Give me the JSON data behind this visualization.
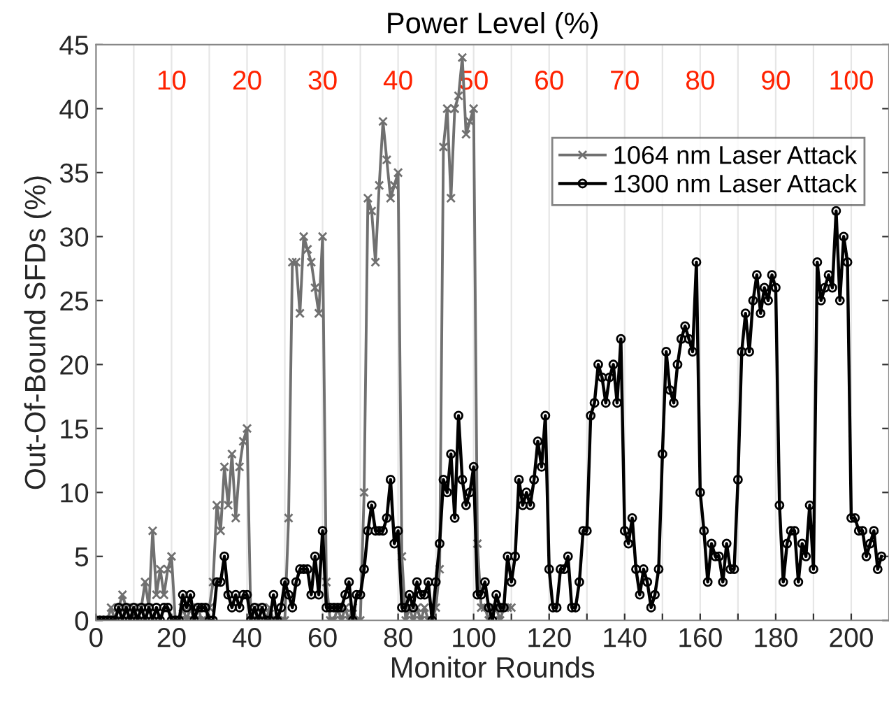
{
  "chart_data": {
    "type": "line",
    "xlabel": "Monitor Rounds",
    "ylabel": "Out-Of-Bound SFDs (%)",
    "x2label": "Power Level (%)",
    "xlim": [
      0,
      210
    ],
    "xticks": [
      0,
      {
        "value": 10,
        "label": null
      },
      20,
      {
        "value": 30,
        "label": null
      },
      40,
      {
        "value": 50,
        "label": null
      },
      60,
      {
        "value": 70,
        "label": null
      },
      80,
      {
        "value": 90,
        "label": null
      },
      100,
      {
        "value": 110,
        "label": null
      },
      120,
      {
        "value": 130,
        "label": null
      },
      140,
      {
        "value": 150,
        "label": null
      },
      160,
      {
        "value": 170,
        "label": null
      },
      180,
      {
        "value": 190,
        "label": null
      },
      200
    ],
    "ylim": [
      0,
      45
    ],
    "yticks": [
      0,
      5,
      10,
      15,
      20,
      25,
      30,
      35,
      40,
      45
    ],
    "x2lim": [
      0,
      105
    ],
    "x2ticks": [
      10,
      20,
      30,
      40,
      50,
      60,
      70,
      80,
      90,
      100
    ],
    "grid": "x",
    "legend": "top right",
    "line_style": "solid",
    "series": [
      {
        "name": "1064 nm Laser Attack",
        "color": "#707070",
        "marker": "cross",
        "x": [
          0,
          1,
          2,
          3,
          4,
          5,
          6,
          7,
          8,
          9,
          10,
          11,
          12,
          13,
          14,
          15,
          16,
          17,
          18,
          19,
          20,
          21,
          22,
          23,
          24,
          25,
          26,
          27,
          28,
          29,
          30,
          31,
          32,
          33,
          34,
          35,
          36,
          37,
          38,
          39,
          40,
          41,
          42,
          43,
          44,
          45,
          46,
          47,
          48,
          49,
          50,
          51,
          52,
          53,
          54,
          55,
          56,
          57,
          58,
          59,
          60,
          61,
          62,
          63,
          64,
          65,
          66,
          67,
          68,
          69,
          70,
          71,
          72,
          73,
          74,
          75,
          76,
          77,
          78,
          79,
          80,
          81,
          82,
          83,
          84,
          85,
          86,
          87,
          88,
          89,
          90,
          91,
          92,
          93,
          94,
          95,
          96,
          97,
          98,
          99,
          100,
          101,
          102,
          103,
          104,
          105,
          106,
          107,
          108,
          109,
          110
        ],
        "values": [
          0,
          0,
          0,
          0,
          1,
          0,
          1,
          2,
          1,
          0,
          1,
          0,
          1,
          3,
          1,
          7,
          2,
          4,
          2,
          4,
          5,
          0,
          0,
          1,
          0,
          1,
          0,
          1,
          0,
          0,
          1,
          3,
          9,
          7,
          12,
          9,
          13,
          8,
          12,
          14,
          15,
          0,
          1,
          0,
          1,
          0,
          1,
          0,
          0,
          0,
          0,
          8,
          28,
          28,
          24,
          30,
          29,
          28,
          26,
          24,
          30,
          3,
          0,
          0,
          1,
          0,
          1,
          0,
          1,
          0,
          0,
          10,
          33,
          32,
          28,
          34,
          39,
          36,
          33,
          34,
          35,
          5,
          0,
          1,
          0,
          1,
          0,
          1,
          0,
          0,
          1,
          4,
          37,
          40,
          33,
          40,
          41,
          44,
          38,
          39,
          40,
          6,
          1,
          1,
          0,
          1,
          1,
          0,
          1,
          1,
          1
        ]
      },
      {
        "name": "1300 nm Laser Attack",
        "color": "#000000",
        "marker": "circle",
        "x": [
          0,
          1,
          2,
          3,
          4,
          5,
          6,
          7,
          8,
          9,
          10,
          11,
          12,
          13,
          14,
          15,
          16,
          17,
          18,
          19,
          20,
          21,
          22,
          23,
          24,
          25,
          26,
          27,
          28,
          29,
          30,
          31,
          32,
          33,
          34,
          35,
          36,
          37,
          38,
          39,
          40,
          41,
          42,
          43,
          44,
          45,
          46,
          47,
          48,
          49,
          50,
          51,
          52,
          53,
          54,
          55,
          56,
          57,
          58,
          59,
          60,
          61,
          62,
          63,
          64,
          65,
          66,
          67,
          68,
          69,
          70,
          71,
          72,
          73,
          74,
          75,
          76,
          77,
          78,
          79,
          80,
          81,
          82,
          83,
          84,
          85,
          86,
          87,
          88,
          89,
          90,
          91,
          92,
          93,
          94,
          95,
          96,
          97,
          98,
          99,
          100,
          101,
          102,
          103,
          104,
          105,
          106,
          107,
          108,
          109,
          110,
          111,
          112,
          113,
          114,
          115,
          116,
          117,
          118,
          119,
          120,
          121,
          122,
          123,
          124,
          125,
          126,
          127,
          128,
          129,
          130,
          131,
          132,
          133,
          134,
          135,
          136,
          137,
          138,
          139,
          140,
          141,
          142,
          143,
          144,
          145,
          146,
          147,
          148,
          149,
          150,
          151,
          152,
          153,
          154,
          155,
          156,
          157,
          158,
          159,
          160,
          161,
          162,
          163,
          164,
          165,
          166,
          167,
          168,
          169,
          170,
          171,
          172,
          173,
          174,
          175,
          176,
          177,
          178,
          179,
          180,
          181,
          182,
          183,
          184,
          185,
          186,
          187,
          188,
          189,
          190,
          191,
          192,
          193,
          194,
          195,
          196,
          197,
          198,
          199,
          200,
          201,
          202,
          203,
          204,
          205,
          206,
          207,
          208
        ],
        "values": [
          0,
          0,
          0,
          0,
          0,
          0,
          1,
          0,
          1,
          0,
          1,
          0,
          1,
          0,
          1,
          0,
          1,
          0,
          1,
          1,
          0,
          0,
          0,
          2,
          1,
          2,
          0,
          1,
          1,
          1,
          0,
          0,
          3,
          3,
          5,
          2,
          1,
          2,
          1,
          2,
          2,
          0,
          1,
          0,
          1,
          0,
          0,
          2,
          0,
          1,
          3,
          2,
          1,
          3,
          4,
          4,
          4,
          2,
          5,
          2,
          7,
          1,
          1,
          1,
          1,
          1,
          2,
          3,
          0,
          2,
          2,
          4,
          7,
          9,
          7,
          7,
          7,
          8,
          11,
          6,
          7,
          1,
          1,
          2,
          1,
          3,
          2,
          2,
          3,
          0,
          3,
          6,
          11,
          10,
          13,
          8,
          16,
          11,
          9,
          10,
          12,
          2,
          2,
          3,
          1,
          0,
          2,
          1,
          1,
          5,
          3,
          5,
          11,
          9,
          10,
          9,
          11,
          14,
          12,
          16,
          4,
          1,
          1,
          4,
          4,
          5,
          1,
          1,
          3,
          7,
          7,
          16,
          17,
          20,
          19,
          17,
          19,
          20,
          17,
          22,
          7,
          6,
          8,
          4,
          2,
          4,
          3,
          1,
          2,
          4,
          13,
          21,
          18,
          17,
          20,
          22,
          23,
          22,
          21,
          28,
          10,
          7,
          3,
          6,
          5,
          5,
          3,
          6,
          4,
          4,
          11,
          21,
          24,
          21,
          25,
          27,
          24,
          26,
          25,
          27,
          26,
          9,
          3,
          6,
          7,
          7,
          3,
          6,
          5,
          9,
          4,
          28,
          25,
          26,
          27,
          26,
          32,
          25,
          30,
          28,
          8,
          8,
          7,
          7,
          5,
          6,
          7,
          4,
          5
        ]
      }
    ]
  }
}
